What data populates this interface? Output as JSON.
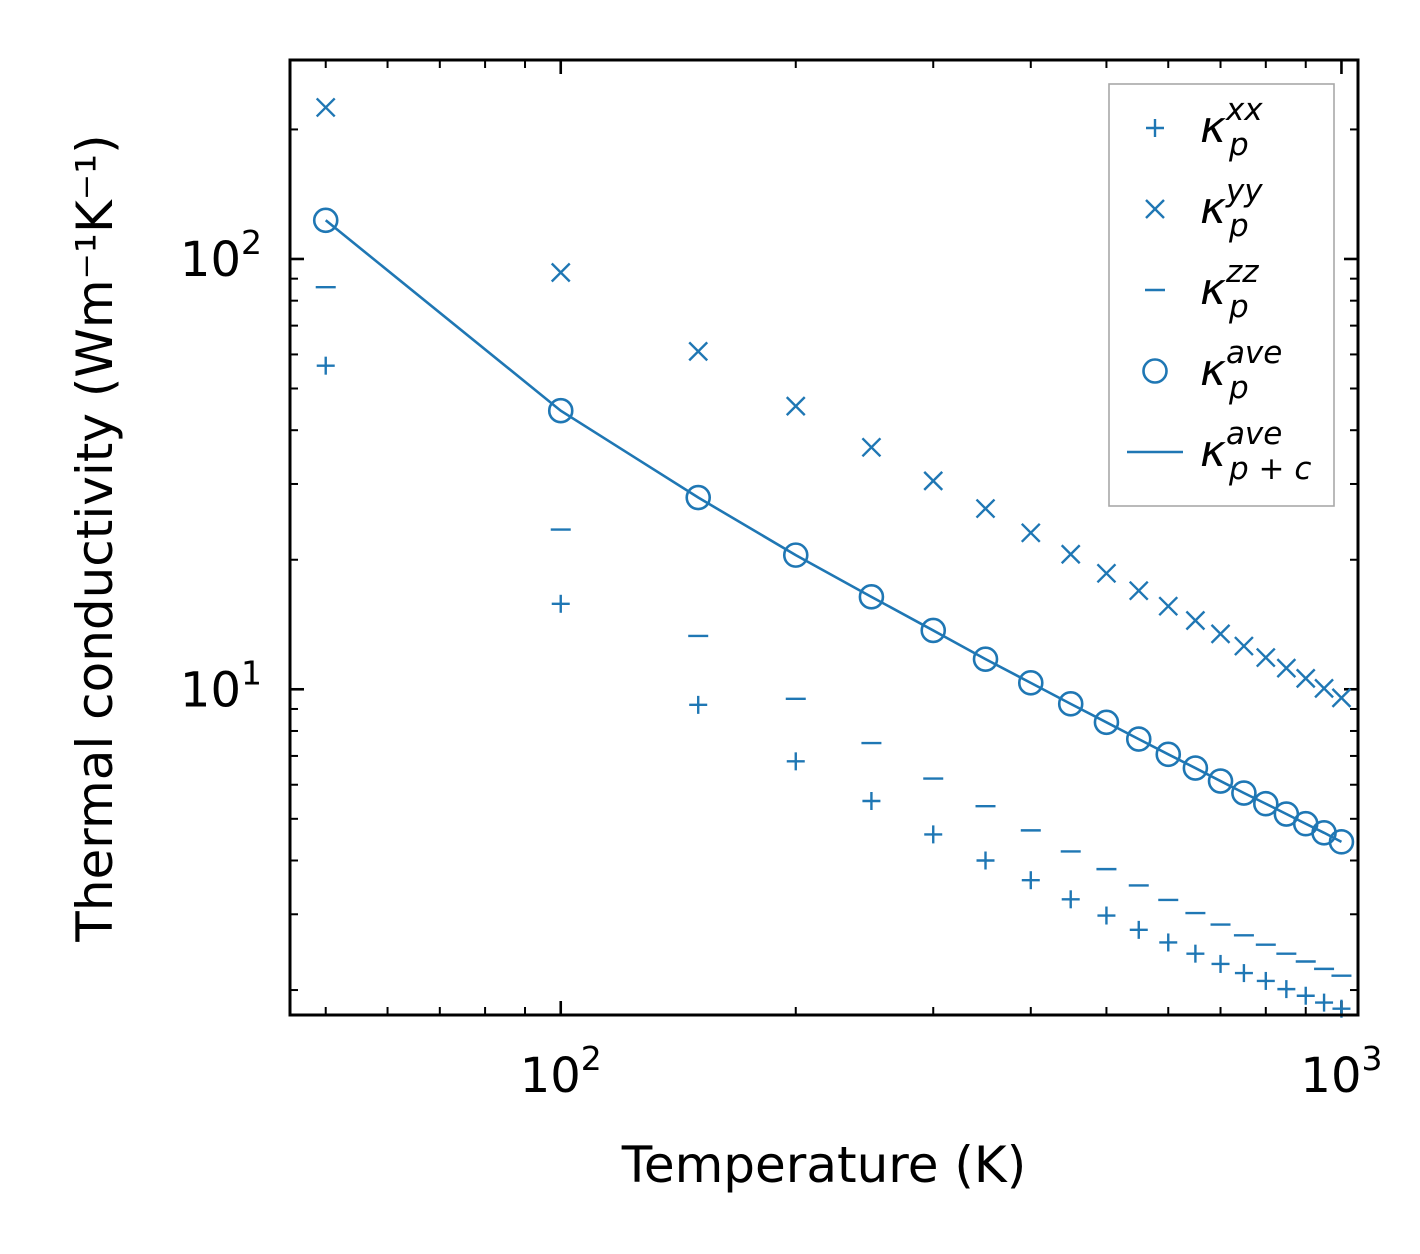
{
  "chart_data": {
    "type": "scatter",
    "xscale": "log",
    "yscale": "log",
    "xlim": [
      45,
      1050
    ],
    "ylim": [
      1.75,
      290
    ],
    "xlabel": "Temperature (K)",
    "ylabel": "Thermal conductivity (Wm⁻¹K⁻¹)",
    "x_ticks": [
      {
        "base": "10",
        "exp": "2",
        "value": 100
      },
      {
        "base": "10",
        "exp": "3",
        "value": 1000
      }
    ],
    "y_ticks": [
      {
        "base": "10",
        "exp": "1",
        "value": 10
      },
      {
        "base": "10",
        "exp": "2",
        "value": 100
      }
    ],
    "x": [
      50,
      100,
      150,
      200,
      250,
      300,
      350,
      400,
      450,
      500,
      550,
      600,
      650,
      700,
      750,
      800,
      850,
      900,
      950,
      1000
    ],
    "series": [
      {
        "name": "κ_p^xx",
        "kappa": "κ",
        "sub": "p",
        "sup": "xx",
        "marker": "plus",
        "values": [
          56.5,
          15.8,
          9.2,
          6.8,
          5.5,
          4.6,
          4.0,
          3.6,
          3.25,
          2.98,
          2.76,
          2.58,
          2.43,
          2.3,
          2.19,
          2.1,
          2.01,
          1.94,
          1.87,
          1.81
        ]
      },
      {
        "name": "κ_p^yy",
        "kappa": "κ",
        "sub": "p",
        "sup": "yy",
        "marker": "x",
        "values": [
          225,
          93,
          61,
          45.5,
          36.5,
          30.5,
          26.3,
          23.1,
          20.6,
          18.6,
          16.95,
          15.6,
          14.45,
          13.45,
          12.6,
          11.85,
          11.2,
          10.6,
          10.05,
          9.55
        ]
      },
      {
        "name": "κ_p^zz",
        "kappa": "κ",
        "sub": "p",
        "sup": "zz",
        "marker": "hline",
        "values": [
          86,
          23.5,
          13.3,
          9.5,
          7.5,
          6.2,
          5.35,
          4.7,
          4.2,
          3.82,
          3.5,
          3.24,
          3.02,
          2.84,
          2.68,
          2.55,
          2.43,
          2.33,
          2.24,
          2.16
        ]
      },
      {
        "name": "κ_p^ave",
        "kappa": "κ",
        "sub": "p",
        "sup": "ave",
        "marker": "circle",
        "values": [
          123,
          44.4,
          27.9,
          20.5,
          16.4,
          13.7,
          11.75,
          10.35,
          9.25,
          8.38,
          7.66,
          7.06,
          6.56,
          6.12,
          5.74,
          5.42,
          5.13,
          4.87,
          4.64,
          4.42
        ]
      },
      {
        "name": "κ_p+c^ave",
        "kappa": "κ",
        "sub": "p + c",
        "sup": "ave",
        "marker": "line",
        "values": [
          123,
          44.4,
          27.9,
          20.5,
          16.4,
          13.7,
          11.75,
          10.35,
          9.25,
          8.38,
          7.66,
          7.06,
          6.56,
          6.12,
          5.74,
          5.42,
          5.13,
          4.87,
          4.64,
          4.42
        ]
      }
    ],
    "color": "#1f77b4",
    "legend_position": "top-right",
    "grid": false
  }
}
